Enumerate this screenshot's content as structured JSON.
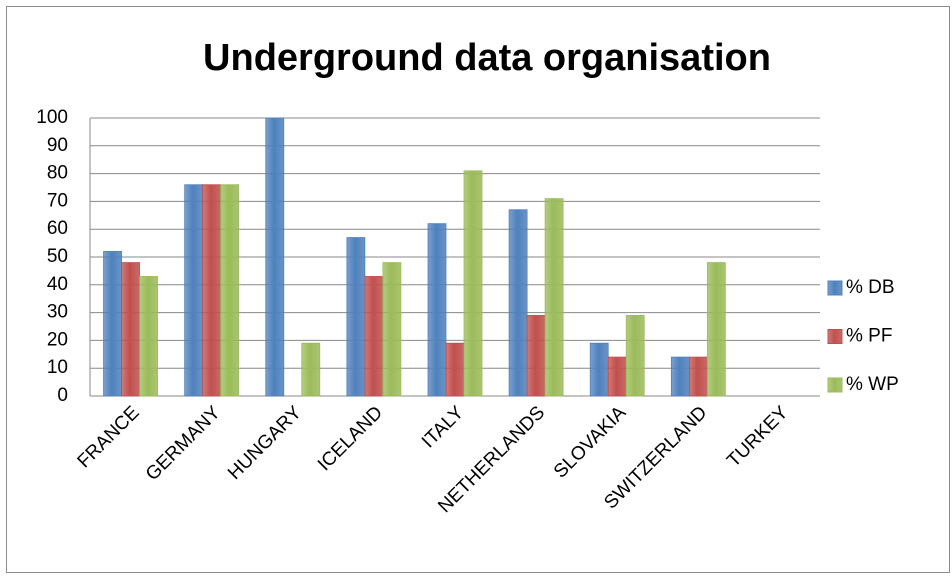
{
  "chart_data": {
    "type": "bar",
    "title": "Underground data organisation",
    "categories": [
      "FRANCE",
      "GERMANY",
      "HUNGARY",
      "ICELAND",
      "ITALY",
      "NETHERLANDS",
      "SLOVAKIA",
      "SWITZERLAND",
      "TURKEY"
    ],
    "series": [
      {
        "name": "% DB",
        "color": "#4f81bd",
        "values": [
          52,
          76,
          100,
          57,
          62,
          67,
          19,
          14,
          0
        ]
      },
      {
        "name": "% PF",
        "color": "#c0504d",
        "values": [
          48,
          76,
          0,
          43,
          19,
          29,
          14,
          14,
          0
        ]
      },
      {
        "name": "% WP",
        "color": "#9bbb59",
        "values": [
          43,
          76,
          19,
          48,
          81,
          71,
          29,
          48,
          0
        ]
      }
    ],
    "ylim": [
      0,
      100
    ],
    "yticks": [
      0,
      10,
      20,
      30,
      40,
      50,
      60,
      70,
      80,
      90,
      100
    ],
    "grid": true,
    "legend": "right"
  }
}
